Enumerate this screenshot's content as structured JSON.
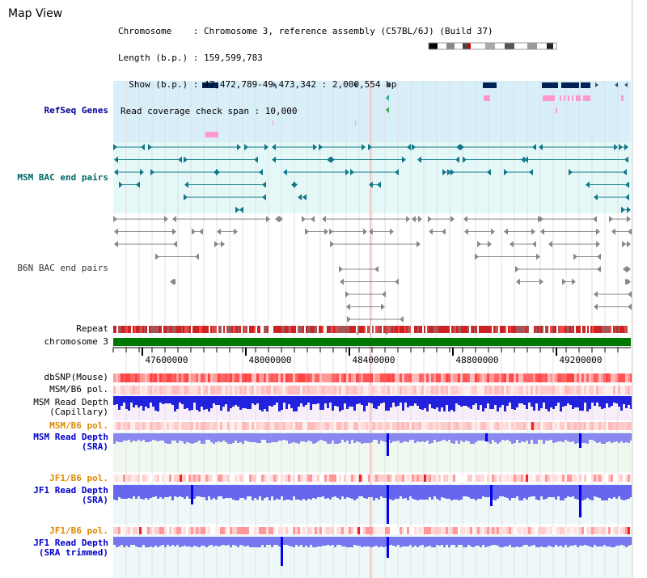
{
  "header": {
    "view_title": "Map View",
    "chromosome": "Chromosome    : Chromosome 3, reference assembly (C57BL/6J) (Build 37)",
    "length": "Length (b.p.) : 159,599,783",
    "show": "  Show (b.p.) : 47,472,789-49,473,342 : 2,000,554 bp",
    "coverage_span": "Read coverage check span : 10,000"
  },
  "tracks": {
    "refseq": "RefSeq Genes",
    "msm_bac": "MSM BAC end pairs",
    "b6n_bac": "B6N BAC end pairs",
    "repeat": "Repeat",
    "chromosome": "chromosome 3",
    "dbsnp": "dbSNP(Mouse)",
    "msm_b6_pol_1": "MSM/B6 pol.",
    "msm_depth_cap": "MSM Read Depth\n(Capillary)",
    "msm_b6_pol_2": "MSM/B6 pol.",
    "msm_depth_sra": "MSM Read Depth\n(SRA)",
    "jf1_b6_pol_1": "JF1/B6 pol.",
    "jf1_depth_sra": "JF1 Read Depth\n(SRA)",
    "jf1_b6_pol_2": "JF1/B6 pol.",
    "jf1_depth_trim": "JF1 Read Depth\n(SRA trimmed)"
  },
  "axis": {
    "ticks": [
      "47600000",
      "48000000",
      "48400000",
      "48800000",
      "49200000"
    ]
  },
  "colors": {
    "refseq_label": "#000099",
    "msm_bac_label": "#006666",
    "pol_label": "#dd8800",
    "depth_label": "#0000cc",
    "chromosome_bar": "#007700",
    "refseq_bg": "#d8eef8",
    "msm_bg": "#e4f8f8",
    "depth_bg": "#eef8f8"
  }
}
